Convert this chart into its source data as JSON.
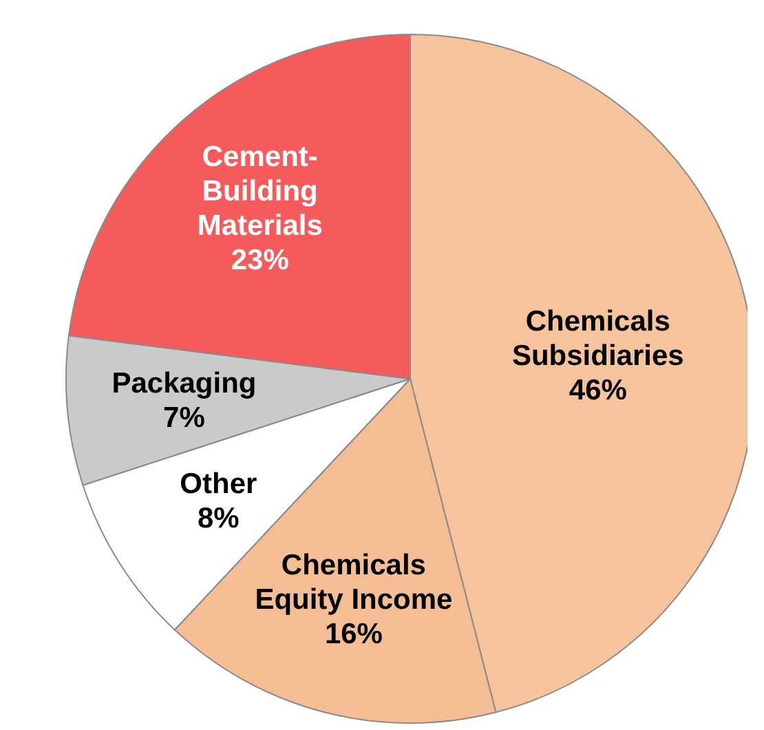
{
  "chart_data": {
    "type": "pie",
    "categories": [
      "Chemicals Subsidiaries",
      "Chemicals Equity Income",
      "Other",
      "Packaging",
      "Cement-Building Materials"
    ],
    "values": [
      46,
      16,
      8,
      7,
      23
    ],
    "colors": [
      "#f5c39c",
      "#f5bd94",
      "#ffffff",
      "#cacaca",
      "#f55b5b"
    ],
    "value_labels": [
      "46%",
      "16%",
      "8%",
      "7%",
      "23%"
    ],
    "legend": false
  }
}
